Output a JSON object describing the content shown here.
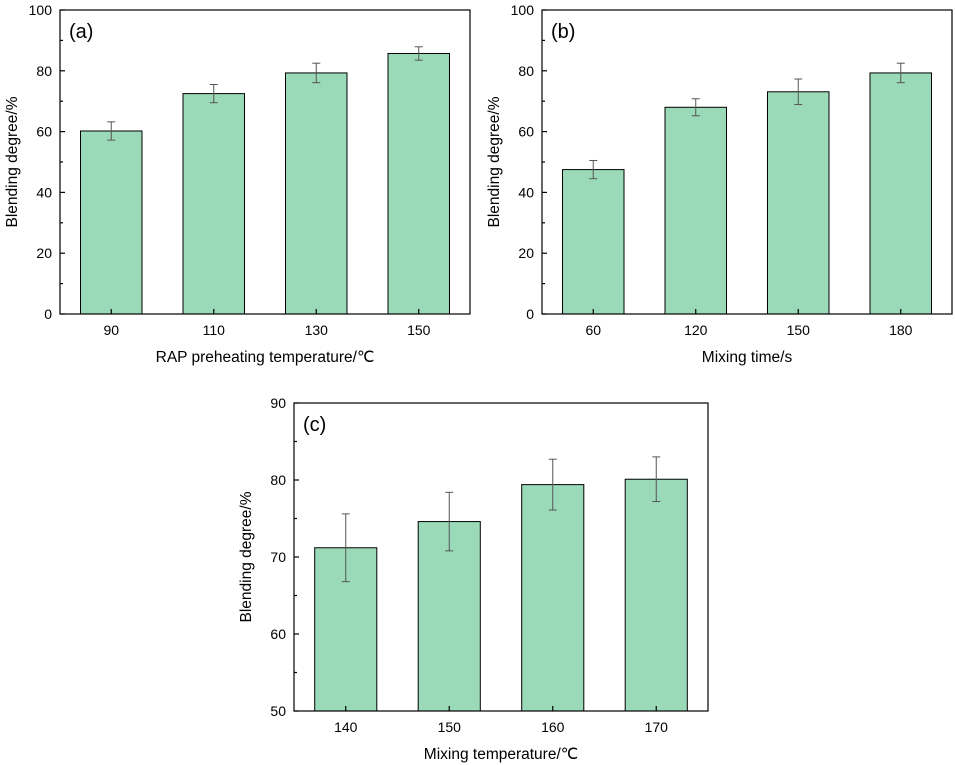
{
  "chart_data": [
    {
      "type": "bar",
      "panel": "(a)",
      "xlabel": "RAP preheating temperature/℃",
      "ylabel": "Blending degree/%",
      "categories": [
        "90",
        "110",
        "130",
        "150"
      ],
      "values": [
        60.2,
        72.5,
        79.3,
        85.7
      ],
      "errors": [
        3.0,
        3.0,
        3.2,
        2.2
      ],
      "ylim": [
        0,
        100
      ],
      "yticks": [
        0,
        20,
        40,
        60,
        80,
        100
      ],
      "bar_color": "#9bdab8"
    },
    {
      "type": "bar",
      "panel": "(b)",
      "xlabel": "Mixing time/s",
      "ylabel": "Blending degree/%",
      "categories": [
        "60",
        "120",
        "150",
        "180"
      ],
      "values": [
        47.5,
        68.0,
        73.1,
        79.3
      ],
      "errors": [
        3.0,
        2.8,
        4.2,
        3.2
      ],
      "ylim": [
        0,
        100
      ],
      "yticks": [
        0,
        20,
        40,
        60,
        80,
        100
      ],
      "bar_color": "#9bdab8"
    },
    {
      "type": "bar",
      "panel": "(c)",
      "xlabel": "Mixing temperature/℃",
      "ylabel": "Blending degree/%",
      "categories": [
        "140",
        "150",
        "160",
        "170"
      ],
      "values": [
        71.2,
        74.6,
        79.4,
        80.1
      ],
      "errors": [
        4.4,
        3.8,
        3.3,
        2.9
      ],
      "ylim": [
        50,
        90
      ],
      "yticks": [
        50,
        60,
        70,
        80,
        90
      ],
      "bar_color": "#9bdab8"
    }
  ]
}
